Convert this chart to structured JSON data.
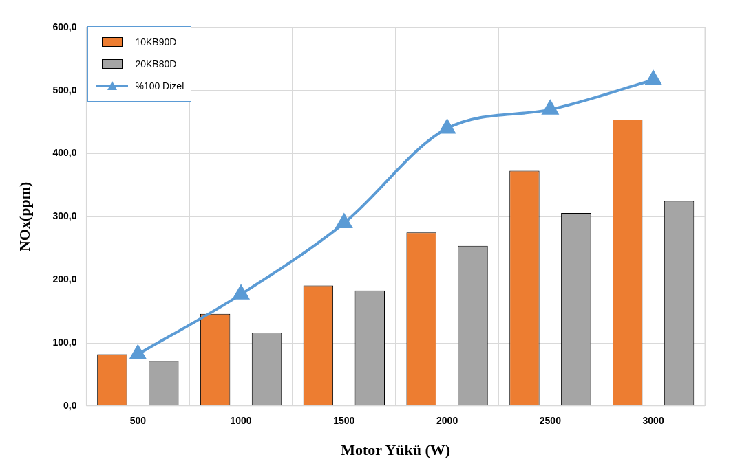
{
  "chart_data": {
    "type": "bar",
    "xlabel": "Motor Yükü (W)",
    "ylabel": "NOx(ppm)",
    "categories": [
      "500",
      "1000",
      "1500",
      "2000",
      "2500",
      "3000"
    ],
    "series": [
      {
        "name": "10KB90D",
        "color": "#ed7d31",
        "values": [
          82,
          146,
          191,
          275,
          373,
          454
        ]
      },
      {
        "name": "20KB80D",
        "color": "#a5a5a5",
        "values": [
          71,
          116,
          183,
          254,
          306,
          325
        ]
      },
      {
        "name": "%100 Dizel",
        "type": "line",
        "color": "#5b9bd5",
        "marker": "triangle",
        "values": [
          82,
          177,
          290,
          440,
          470,
          517
        ]
      }
    ],
    "ylim": [
      0,
      600
    ],
    "yticks": [
      {
        "value": 0,
        "label": "0,0"
      },
      {
        "value": 100,
        "label": "100,0"
      },
      {
        "value": 200,
        "label": "200,0"
      },
      {
        "value": 300,
        "label": "300,0"
      },
      {
        "value": 400,
        "label": "400,0"
      },
      {
        "value": 500,
        "label": "500,0"
      },
      {
        "value": 600,
        "label": "600,0"
      }
    ],
    "grid": true,
    "legend": "top left"
  }
}
